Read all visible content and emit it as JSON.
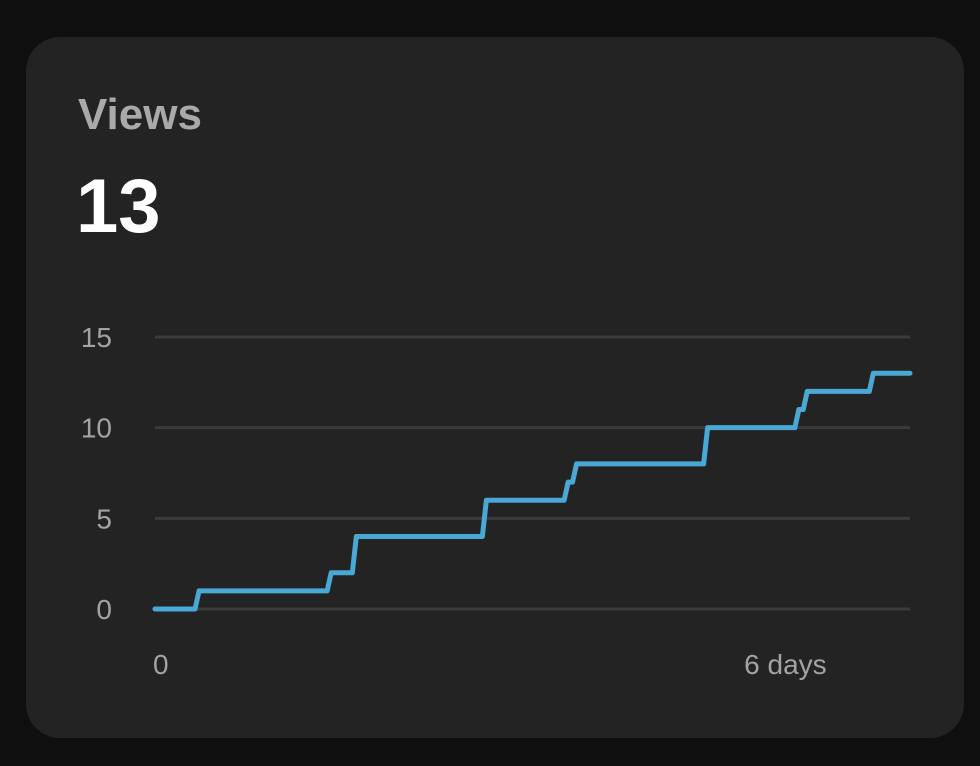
{
  "card": {
    "title": "Views",
    "value": "13"
  },
  "chart_data": {
    "type": "line",
    "style": "step",
    "title": "",
    "xlabel": "",
    "ylabel": "",
    "line_color": "#4aa8d4",
    "grid": true,
    "grid_color": "#3b3b3b",
    "ylim": [
      0,
      15
    ],
    "yticks": [
      0,
      5,
      10,
      15
    ],
    "xlim": [
      0,
      7.2
    ],
    "xtick_labels": [
      {
        "x": 0,
        "label": "0"
      },
      {
        "x": 6,
        "label": "6 days"
      }
    ],
    "series": [
      {
        "x": [
          0.0,
          0.42,
          1.68,
          1.92,
          3.16,
          3.94,
          4.02,
          5.27,
          6.14,
          6.22,
          6.85,
          7.2
        ],
        "y": [
          0,
          1,
          2,
          4,
          6,
          7,
          8,
          10,
          11,
          12,
          13,
          13
        ]
      }
    ]
  }
}
